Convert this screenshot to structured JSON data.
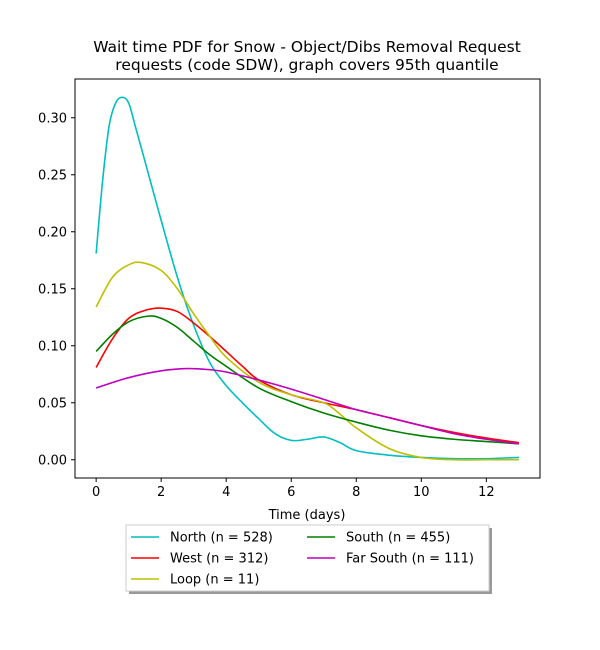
{
  "chart_data": {
    "type": "line",
    "title": "Wait time PDF for Snow - Object/Dibs Removal Request",
    "subtitle": "requests (code SDW), graph covers 95th quantile",
    "xlabel": "Time (days)",
    "ylabel": "",
    "xlim": [
      -0.65,
      13.65
    ],
    "ylim": [
      -0.016,
      0.334
    ],
    "x_ticks": [
      0,
      2,
      4,
      6,
      8,
      10,
      12
    ],
    "x_tick_labels": [
      "0",
      "2",
      "4",
      "6",
      "8",
      "10",
      "12"
    ],
    "y_ticks": [
      0.0,
      0.05,
      0.1,
      0.15,
      0.2,
      0.25,
      0.3
    ],
    "y_tick_labels": [
      "0.00",
      "0.05",
      "0.10",
      "0.15",
      "0.20",
      "0.25",
      "0.30"
    ],
    "grid": false,
    "legend_placement": "below",
    "series": [
      {
        "name": "North (n = 528)",
        "color": "#00bfbf",
        "x": [
          0,
          0.2,
          0.4,
          0.6,
          0.8,
          1.0,
          1.2,
          1.5,
          2.0,
          2.5,
          3.0,
          3.5,
          4.0,
          4.5,
          5.0,
          5.5,
          6.0,
          6.5,
          7.0,
          7.5,
          8.0,
          9.0,
          10.0,
          11.0,
          12.0,
          13.0
        ],
        "y": [
          0.181,
          0.245,
          0.293,
          0.313,
          0.318,
          0.313,
          0.293,
          0.262,
          0.21,
          0.16,
          0.118,
          0.085,
          0.065,
          0.05,
          0.036,
          0.023,
          0.017,
          0.018,
          0.02,
          0.015,
          0.008,
          0.004,
          0.002,
          0.001,
          0.001,
          0.002
        ]
      },
      {
        "name": "West (n = 312)",
        "color": "#ff0000",
        "x": [
          0,
          0.5,
          1.0,
          1.5,
          2.0,
          2.5,
          3.0,
          3.5,
          4.0,
          4.5,
          5.0,
          6.0,
          7.0,
          8.0,
          9.0,
          10.0,
          11.0,
          12.0,
          13.0
        ],
        "y": [
          0.081,
          0.106,
          0.124,
          0.131,
          0.133,
          0.13,
          0.12,
          0.108,
          0.095,
          0.082,
          0.07,
          0.057,
          0.05,
          0.044,
          0.037,
          0.03,
          0.024,
          0.019,
          0.015
        ]
      },
      {
        "name": "Loop (n = 11)",
        "color": "#bfbf00",
        "x": [
          0,
          0.5,
          1.0,
          1.4,
          2.0,
          2.5,
          3.0,
          3.5,
          4.0,
          5.0,
          6.0,
          7.0,
          7.5,
          8.0,
          9.0,
          10.0,
          11.0,
          12.0,
          13.0
        ],
        "y": [
          0.134,
          0.16,
          0.171,
          0.173,
          0.166,
          0.15,
          0.128,
          0.108,
          0.09,
          0.068,
          0.057,
          0.05,
          0.04,
          0.028,
          0.01,
          0.002,
          0.0,
          0.0,
          0.0
        ]
      },
      {
        "name": "South (n = 455)",
        "color": "#008000",
        "x": [
          0,
          0.5,
          1.0,
          1.6,
          2.0,
          2.5,
          3.0,
          3.5,
          4.0,
          5.0,
          6.0,
          7.0,
          8.0,
          9.0,
          10.0,
          11.0,
          12.0,
          13.0
        ],
        "y": [
          0.095,
          0.11,
          0.121,
          0.126,
          0.124,
          0.116,
          0.104,
          0.092,
          0.082,
          0.063,
          0.051,
          0.041,
          0.033,
          0.026,
          0.021,
          0.018,
          0.016,
          0.014
        ]
      },
      {
        "name": "Far South (n = 111)",
        "color": "#bf00bf",
        "x": [
          0,
          1.0,
          2.0,
          2.8,
          3.5,
          4.0,
          5.0,
          6.0,
          7.0,
          8.0,
          9.0,
          10.0,
          11.0,
          12.0,
          13.0
        ],
        "y": [
          0.063,
          0.072,
          0.078,
          0.08,
          0.079,
          0.077,
          0.07,
          0.062,
          0.053,
          0.044,
          0.037,
          0.03,
          0.023,
          0.018,
          0.014
        ]
      }
    ]
  }
}
